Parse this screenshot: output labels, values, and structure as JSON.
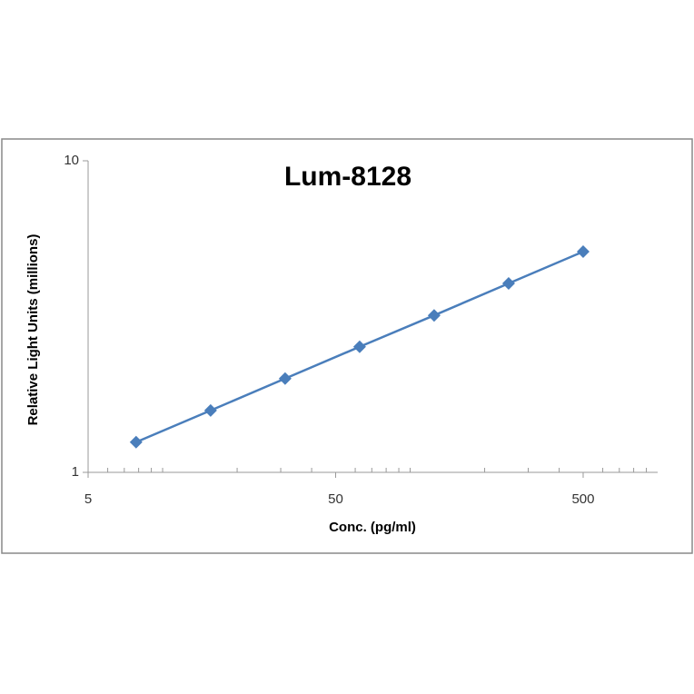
{
  "chart_data": {
    "type": "line",
    "title": "Lum-8128",
    "x_label": "Conc. (pg/ml)",
    "y_label": "Relative Light Units (millions)",
    "x": [
      7.8125,
      15.625,
      31.25,
      62.5,
      125,
      250,
      500
    ],
    "series": [
      {
        "name": "Lum-8128",
        "color": "#4a7ebb",
        "values": [
          1.25,
          1.58,
          2.0,
          2.53,
          3.19,
          4.04,
          5.11
        ]
      }
    ],
    "x_log": true,
    "y_log": true,
    "xlim": [
      5,
      1000
    ],
    "ylim": [
      1,
      10
    ],
    "xticks": [
      5,
      50,
      500
    ],
    "yticks": [
      1,
      10
    ],
    "xminorticks": [
      6,
      7,
      8,
      9,
      10,
      20,
      30,
      40,
      60,
      70,
      80,
      90,
      100,
      200,
      300,
      400,
      600,
      700,
      800,
      900
    ],
    "grid": false
  }
}
